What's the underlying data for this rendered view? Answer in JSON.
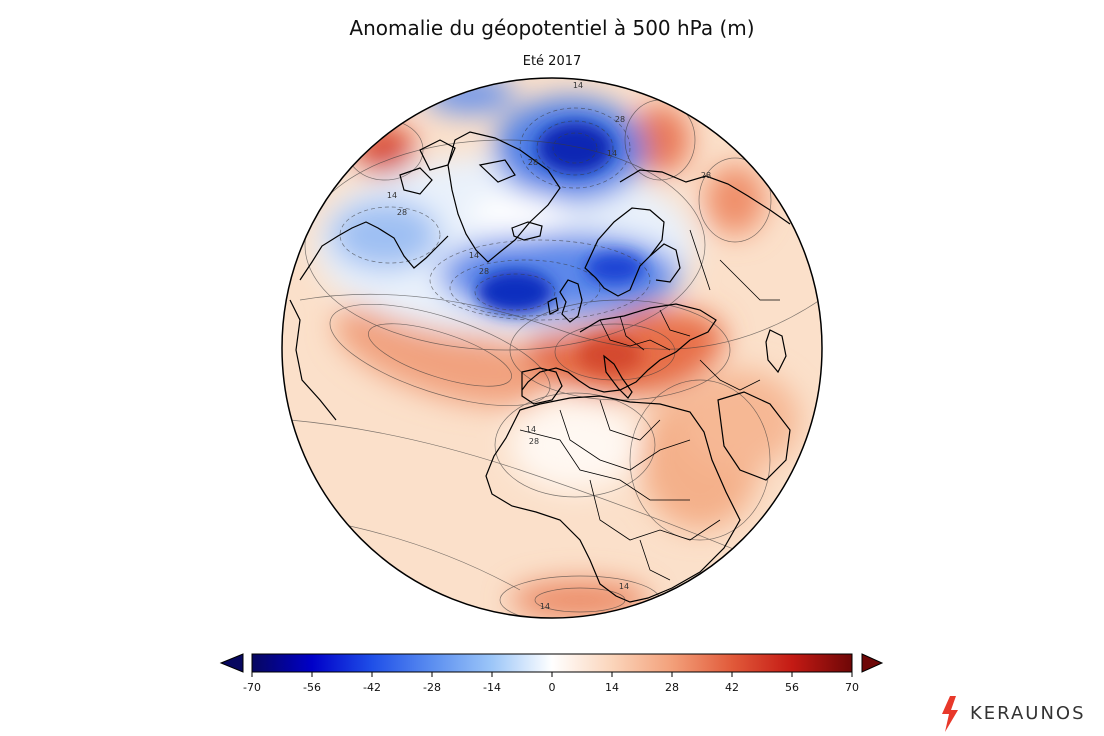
{
  "map": {
    "title": "Anomalie du géopotentiel à 500 hPa (m)",
    "subtitle": "Eté 2017",
    "projection": "orthographic",
    "variable": "geopotential height anomaly 500 hPa",
    "unit": "m"
  },
  "colorbar": {
    "ticks": [
      "-70",
      "-56",
      "-42",
      "-28",
      "-14",
      "0",
      "14",
      "28",
      "42",
      "56",
      "70"
    ],
    "colors": [
      "#07075f",
      "#0000c8",
      "#1f4fe8",
      "#5b8ef0",
      "#9cc6f8",
      "#ffffff",
      "#fbd5bb",
      "#f3a07a",
      "#e15a3a",
      "#c41a14",
      "#6e0707"
    ],
    "extend": "both"
  },
  "contour_labels": [
    "14",
    "28",
    "14",
    "28",
    "28",
    "14",
    "28",
    "14",
    "28",
    "14",
    "14",
    "28",
    "14"
  ],
  "brand": {
    "name": "KERAUNOS",
    "accent": "#e8382a"
  }
}
